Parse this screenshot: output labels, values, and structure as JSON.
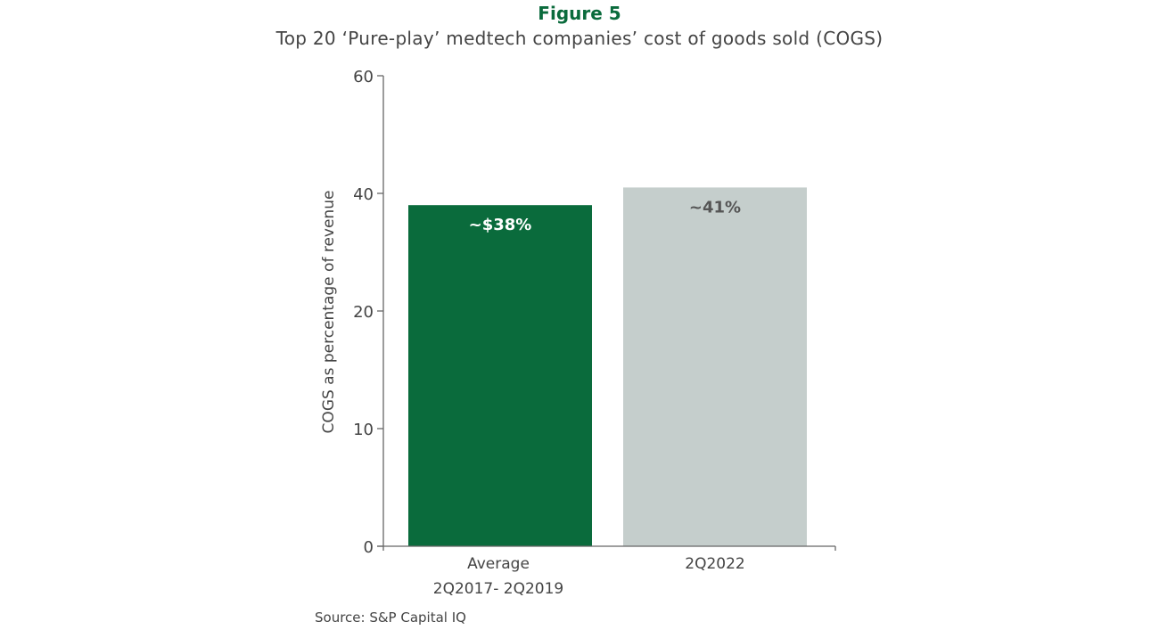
{
  "chart_data": {
    "type": "bar",
    "figure_label": "Figure 5",
    "title": "Top 20 ‘Pure-play’ medtech companies’ cost of goods sold (COGS)",
    "xlabel": "",
    "ylabel": "COGS as percentage of revenue",
    "ylim": [
      0,
      60
    ],
    "yticks": [
      0,
      10,
      20,
      40,
      60
    ],
    "grid": false,
    "categories": [
      [
        "Average",
        "2Q2017- 2Q2019"
      ],
      [
        "2Q2022"
      ]
    ],
    "values": [
      38,
      41
    ],
    "data_labels": [
      "~$38%",
      "~41%"
    ],
    "bar_colors": [
      "#0a6b3c",
      "#c5cecc"
    ],
    "label_colors": [
      "#ffffff",
      "#555555"
    ],
    "source": "Source: S&P Capital IQ"
  }
}
